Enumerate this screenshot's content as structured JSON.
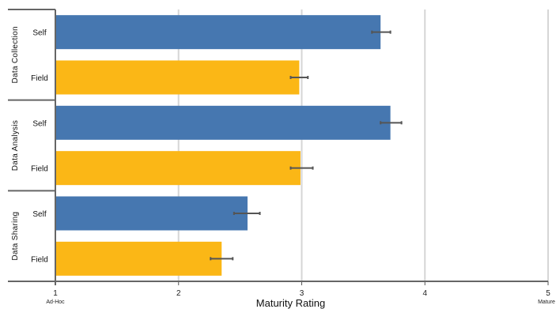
{
  "chart_data": {
    "type": "bar",
    "orientation": "horizontal",
    "xlabel": "Maturity Rating",
    "xlim": [
      1,
      5
    ],
    "xticks": [
      "1",
      "2",
      "3",
      "4",
      "5"
    ],
    "x_extreme_labels": {
      "low": "Ad-Hoc",
      "high": "Mature"
    },
    "grid": "vertical",
    "groups": [
      {
        "name": "Data Collection",
        "bars": [
          {
            "label": "Self",
            "value": 3.64,
            "err_low": 3.57,
            "err_high": 3.72
          },
          {
            "label": "Field",
            "value": 2.98,
            "err_low": 2.91,
            "err_high": 3.05
          }
        ]
      },
      {
        "name": "Data Analysis",
        "bars": [
          {
            "label": "Self",
            "value": 3.72,
            "err_low": 3.64,
            "err_high": 3.81
          },
          {
            "label": "Field",
            "value": 2.99,
            "err_low": 2.91,
            "err_high": 3.09
          }
        ]
      },
      {
        "name": "Data Sharing",
        "bars": [
          {
            "label": "Self",
            "value": 2.56,
            "err_low": 2.45,
            "err_high": 2.66
          },
          {
            "label": "Field",
            "value": 2.35,
            "err_low": 2.26,
            "err_high": 2.44
          }
        ]
      }
    ],
    "colors": {
      "Self": "#4677b0",
      "Field": "#fbb716"
    }
  }
}
